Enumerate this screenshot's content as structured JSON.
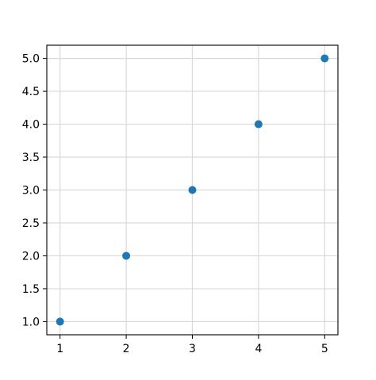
{
  "chart_data": {
    "type": "scatter",
    "title": "",
    "xlabel": "",
    "ylabel": "",
    "x": [
      1,
      2,
      3,
      4,
      5
    ],
    "y": [
      1,
      2,
      3,
      4,
      5
    ],
    "xlim": [
      0.8,
      5.2
    ],
    "ylim": [
      0.8,
      5.2
    ],
    "xticks": [
      "1",
      "2",
      "3",
      "4",
      "5"
    ],
    "yticks": [
      "1.0",
      "1.5",
      "2.0",
      "2.5",
      "3.0",
      "3.5",
      "4.0",
      "4.5",
      "5.0"
    ],
    "grid": true,
    "marker_color": "#1f77b4",
    "legend": null
  }
}
